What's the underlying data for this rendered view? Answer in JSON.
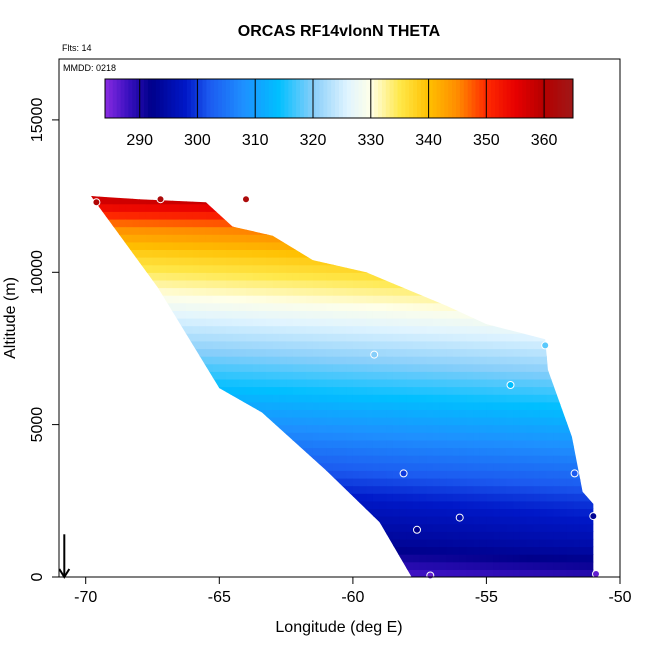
{
  "chart_data": {
    "type": "heatmap",
    "title": "ORCAS RF14vlonN THETA",
    "annotations": [
      "Flts: 14",
      "MMDD: 0218"
    ],
    "xlabel": "Longitude (deg E)",
    "ylabel": "Altitude (m)",
    "xlim": [
      -71,
      -50
    ],
    "ylim": [
      0,
      17000
    ],
    "x_ticks": [
      -70,
      -65,
      -60,
      -55,
      -50
    ],
    "x_tick_labels": [
      "-70",
      "-65",
      "-60",
      "-55",
      "-50"
    ],
    "y_ticks": [
      0,
      5000,
      10000,
      15000
    ],
    "y_tick_labels": [
      "0",
      "5000",
      "10000",
      "15000"
    ],
    "colorbar": {
      "min": 284,
      "max": 365,
      "ticks": [
        290,
        300,
        310,
        320,
        330,
        340,
        350,
        360
      ],
      "tick_labels": [
        "290",
        "300",
        "310",
        "320",
        "330",
        "340",
        "350",
        "360"
      ],
      "divisions": [
        290,
        300,
        310,
        320,
        330,
        340,
        350,
        360
      ],
      "colors": [
        {
          "v": 284,
          "c": "#8a2be2"
        },
        {
          "v": 288,
          "c": "#3a10c0"
        },
        {
          "v": 292,
          "c": "#00008b"
        },
        {
          "v": 298,
          "c": "#0018c8"
        },
        {
          "v": 302,
          "c": "#1c5af0"
        },
        {
          "v": 308,
          "c": "#1e90ff"
        },
        {
          "v": 314,
          "c": "#00bfff"
        },
        {
          "v": 320,
          "c": "#87cefa"
        },
        {
          "v": 326,
          "c": "#e0f4ff"
        },
        {
          "v": 330,
          "c": "#ffffe8"
        },
        {
          "v": 335,
          "c": "#ffe84a"
        },
        {
          "v": 340,
          "c": "#ffc000"
        },
        {
          "v": 345,
          "c": "#ff8c00"
        },
        {
          "v": 350,
          "c": "#ff2a00"
        },
        {
          "v": 355,
          "c": "#e80000"
        },
        {
          "v": 360,
          "c": "#b40000"
        },
        {
          "v": 365,
          "c": "#a01818"
        }
      ]
    },
    "field_boundary": {
      "top": [
        [
          -69.8,
          12500
        ],
        [
          -68,
          12400
        ],
        [
          -65.5,
          12300
        ],
        [
          -64.5,
          11500
        ],
        [
          -63,
          11200
        ],
        [
          -61.5,
          10400
        ],
        [
          -59.5,
          10000
        ],
        [
          -56.5,
          8900
        ],
        [
          -55,
          8300
        ],
        [
          -52.8,
          7800
        ]
      ],
      "right": [
        [
          -52.8,
          7800
        ],
        [
          -52.7,
          6800
        ],
        [
          -51.8,
          4600
        ],
        [
          -51.4,
          2800
        ],
        [
          -51.0,
          2400
        ],
        [
          -51.0,
          0
        ]
      ],
      "bottom": [
        [
          -51.0,
          0
        ],
        [
          -57.8,
          0
        ]
      ],
      "left": [
        [
          -57.8,
          0
        ],
        [
          -59,
          1800
        ],
        [
          -61,
          3500
        ],
        [
          -63.4,
          5400
        ],
        [
          -65,
          6200
        ],
        [
          -67.3,
          9500
        ],
        [
          -69.8,
          12500
        ]
      ]
    },
    "field_model": {
      "kind": "interpolated_theta",
      "theta_surface": [
        [
          0,
          287
        ],
        [
          1000,
          293
        ],
        [
          2500,
          298
        ],
        [
          4000,
          305
        ],
        [
          5500,
          312
        ],
        [
          7000,
          320
        ],
        [
          8500,
          328
        ],
        [
          9500,
          334
        ],
        [
          10500,
          340
        ],
        [
          11500,
          348
        ],
        [
          12500,
          362
        ]
      ],
      "horizontal_shift_k_per_deg": 1.8
    },
    "observation_points": [
      {
        "lon": -69.6,
        "alt": 12300,
        "theta": 361
      },
      {
        "lon": -67.2,
        "alt": 12400,
        "theta": 362
      },
      {
        "lon": -64.0,
        "alt": 12400,
        "theta": 362
      },
      {
        "lon": -59.2,
        "alt": 7300,
        "theta": 320
      },
      {
        "lon": -54.1,
        "alt": 6300,
        "theta": 314
      },
      {
        "lon": -52.8,
        "alt": 7600,
        "theta": 318
      },
      {
        "lon": -58.1,
        "alt": 3400,
        "theta": 300
      },
      {
        "lon": -51.7,
        "alt": 3400,
        "theta": 302
      },
      {
        "lon": -56.0,
        "alt": 1950,
        "theta": 295
      },
      {
        "lon": -57.6,
        "alt": 1550,
        "theta": 292
      },
      {
        "lon": -51.0,
        "alt": 2000,
        "theta": 293
      },
      {
        "lon": -57.1,
        "alt": 50,
        "theta": 286
      },
      {
        "lon": -50.9,
        "alt": 100,
        "theta": 286
      }
    ],
    "arrow_marker": {
      "lon": -70.8,
      "alt": 700,
      "direction": "down"
    },
    "grid": false,
    "legend": "colorbar-top"
  }
}
